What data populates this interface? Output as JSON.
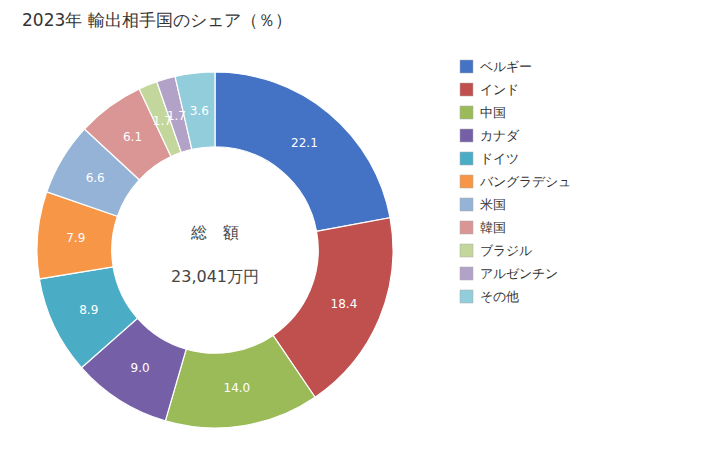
{
  "chart_data": {
    "type": "donut",
    "title": "2023年 輸出相手国のシェア（％）",
    "annotations": [
      "総　額",
      "23,041万円"
    ],
    "categories": [
      "ベルギー",
      "インド",
      "中国",
      "カナダ",
      "ドイツ",
      "バングラデシュ",
      "米国",
      "韓国",
      "ブラジル",
      "アルゼンチン",
      "その他"
    ],
    "values": [
      22.1,
      18.4,
      14.0,
      9.0,
      8.9,
      7.9,
      6.6,
      6.1,
      1.7,
      1.7,
      3.6
    ],
    "value_labels": [
      "22.1",
      "18.4",
      "14.0",
      "9.0",
      "8.9",
      "7.9",
      "6.6",
      "6.1",
      "1.7",
      "1.7",
      "3.6"
    ],
    "colors": [
      "#4472C4",
      "#C0504D",
      "#9BBB59",
      "#7560A8",
      "#4BACC6",
      "#F79646",
      "#95B3D7",
      "#D99694",
      "#C3D69B",
      "#B3A2C7",
      "#92CDDC"
    ],
    "data_labels": true,
    "legend": "right"
  }
}
